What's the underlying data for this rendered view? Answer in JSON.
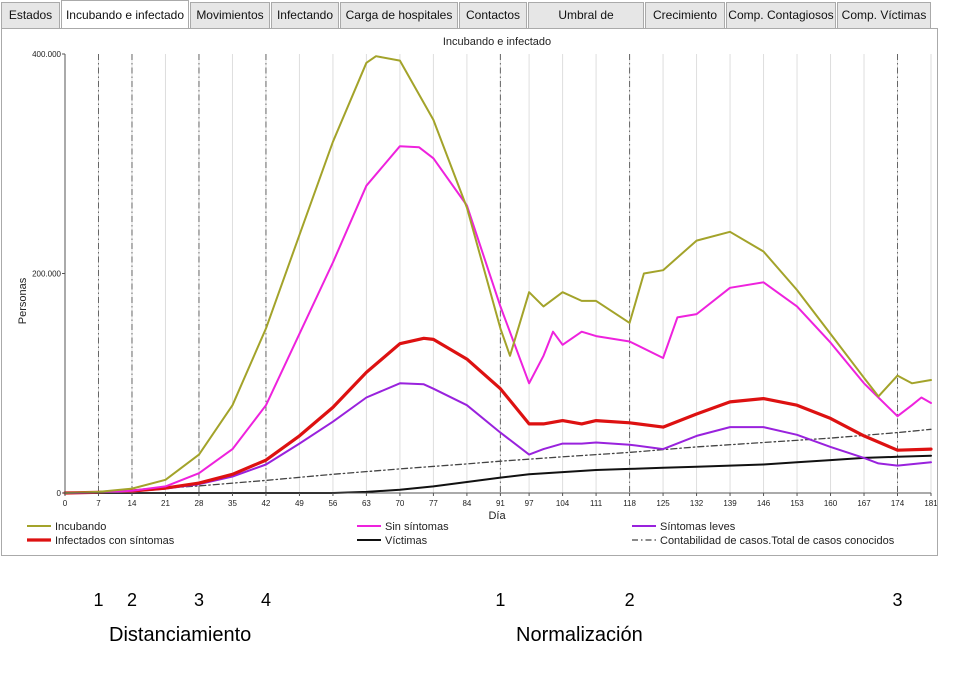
{
  "tabs": [
    {
      "label": "Estados"
    },
    {
      "label": "Incubando e infectado",
      "active": true
    },
    {
      "label": "Movimientos"
    },
    {
      "label": "Infectando"
    },
    {
      "label": "Carga de hospitales"
    },
    {
      "label": "Contactos"
    },
    {
      "label": "Umbral de Inmunidad"
    },
    {
      "label": "Crecimiento"
    },
    {
      "label": "Comp. Contagiosos"
    },
    {
      "label": "Comp. Víctimas"
    }
  ],
  "chart_data": {
    "type": "line",
    "title": "Incubando e infectado",
    "xlabel": "Día",
    "ylabel": "Personas",
    "xlim": [
      0,
      181
    ],
    "ylim": [
      0,
      400000
    ],
    "yticks": [
      {
        "value": 0,
        "label": "0"
      },
      {
        "value": 200000,
        "label": "200.000"
      },
      {
        "value": 400000,
        "label": "400.000"
      }
    ],
    "xticks": [
      0,
      7,
      14,
      21,
      28,
      35,
      42,
      49,
      56,
      63,
      70,
      77,
      84,
      91,
      97,
      104,
      111,
      118,
      125,
      132,
      139,
      146,
      153,
      160,
      167,
      174,
      181
    ],
    "vlines": [
      7,
      14,
      28,
      42,
      91,
      118,
      174
    ],
    "series": [
      {
        "name": "Incubando",
        "color": "#a3a32a",
        "width": 2,
        "dash": "",
        "points": [
          [
            0,
            0
          ],
          [
            7,
            1000
          ],
          [
            14,
            4000
          ],
          [
            21,
            12000
          ],
          [
            28,
            35000
          ],
          [
            35,
            80000
          ],
          [
            42,
            150000
          ],
          [
            49,
            235000
          ],
          [
            56,
            320000
          ],
          [
            63,
            392000
          ],
          [
            65,
            398000
          ],
          [
            70,
            394000
          ],
          [
            77,
            340000
          ],
          [
            84,
            260000
          ],
          [
            91,
            150000
          ],
          [
            93,
            125000
          ],
          [
            97,
            183000
          ],
          [
            100,
            170000
          ],
          [
            104,
            183000
          ],
          [
            108,
            175000
          ],
          [
            111,
            175000
          ],
          [
            118,
            155000
          ],
          [
            121,
            200000
          ],
          [
            125,
            203000
          ],
          [
            132,
            230000
          ],
          [
            139,
            238000
          ],
          [
            146,
            220000
          ],
          [
            153,
            185000
          ],
          [
            160,
            145000
          ],
          [
            167,
            105000
          ],
          [
            170,
            88000
          ],
          [
            174,
            107000
          ],
          [
            177,
            100000
          ],
          [
            181,
            103000
          ]
        ]
      },
      {
        "name": "Sin síntomas",
        "color": "#ee22dd",
        "width": 2,
        "dash": "",
        "points": [
          [
            0,
            0
          ],
          [
            7,
            500
          ],
          [
            14,
            2000
          ],
          [
            21,
            6000
          ],
          [
            28,
            18000
          ],
          [
            35,
            40000
          ],
          [
            42,
            80000
          ],
          [
            49,
            145000
          ],
          [
            56,
            210000
          ],
          [
            63,
            280000
          ],
          [
            70,
            316000
          ],
          [
            74,
            315000
          ],
          [
            77,
            305000
          ],
          [
            84,
            262000
          ],
          [
            91,
            170000
          ],
          [
            97,
            100000
          ],
          [
            100,
            125000
          ],
          [
            102,
            147000
          ],
          [
            104,
            135000
          ],
          [
            108,
            147000
          ],
          [
            111,
            143000
          ],
          [
            118,
            138000
          ],
          [
            125,
            123000
          ],
          [
            128,
            160000
          ],
          [
            132,
            163000
          ],
          [
            139,
            187000
          ],
          [
            146,
            192000
          ],
          [
            153,
            170000
          ],
          [
            160,
            137000
          ],
          [
            167,
            100000
          ],
          [
            170,
            87000
          ],
          [
            174,
            70000
          ],
          [
            177,
            80000
          ],
          [
            179,
            87000
          ],
          [
            181,
            82000
          ]
        ]
      },
      {
        "name": "Síntomas leves",
        "color": "#9922dd",
        "width": 2,
        "dash": "",
        "points": [
          [
            0,
            0
          ],
          [
            7,
            500
          ],
          [
            14,
            1500
          ],
          [
            21,
            4000
          ],
          [
            28,
            8000
          ],
          [
            35,
            15000
          ],
          [
            42,
            26000
          ],
          [
            49,
            45000
          ],
          [
            56,
            65000
          ],
          [
            63,
            87000
          ],
          [
            70,
            100000
          ],
          [
            75,
            99000
          ],
          [
            77,
            95000
          ],
          [
            84,
            80000
          ],
          [
            91,
            55000
          ],
          [
            97,
            35000
          ],
          [
            100,
            40000
          ],
          [
            104,
            45000
          ],
          [
            108,
            45000
          ],
          [
            111,
            46000
          ],
          [
            118,
            44000
          ],
          [
            125,
            40000
          ],
          [
            132,
            52000
          ],
          [
            139,
            60000
          ],
          [
            146,
            60000
          ],
          [
            153,
            53000
          ],
          [
            160,
            42000
          ],
          [
            167,
            32000
          ],
          [
            170,
            27000
          ],
          [
            174,
            25000
          ],
          [
            181,
            28000
          ]
        ]
      },
      {
        "name": "Infectados con síntomas",
        "color": "#dd1111",
        "width": 3.2,
        "dash": "",
        "points": [
          [
            0,
            0
          ],
          [
            7,
            600
          ],
          [
            14,
            1800
          ],
          [
            21,
            4500
          ],
          [
            28,
            9000
          ],
          [
            35,
            17000
          ],
          [
            42,
            30000
          ],
          [
            49,
            52000
          ],
          [
            56,
            78000
          ],
          [
            63,
            110000
          ],
          [
            70,
            136000
          ],
          [
            75,
            141000
          ],
          [
            77,
            140000
          ],
          [
            84,
            122000
          ],
          [
            91,
            95000
          ],
          [
            97,
            63000
          ],
          [
            100,
            63000
          ],
          [
            104,
            66000
          ],
          [
            108,
            63000
          ],
          [
            111,
            66000
          ],
          [
            118,
            64000
          ],
          [
            125,
            60000
          ],
          [
            132,
            72000
          ],
          [
            139,
            83000
          ],
          [
            146,
            86000
          ],
          [
            153,
            80000
          ],
          [
            160,
            68000
          ],
          [
            167,
            52000
          ],
          [
            174,
            39000
          ],
          [
            181,
            40000
          ]
        ]
      },
      {
        "name": "Víctimas",
        "color": "#111111",
        "width": 2,
        "dash": "",
        "points": [
          [
            0,
            0
          ],
          [
            42,
            0
          ],
          [
            56,
            0
          ],
          [
            63,
            1000
          ],
          [
            70,
            3000
          ],
          [
            77,
            6000
          ],
          [
            84,
            10000
          ],
          [
            91,
            14000
          ],
          [
            97,
            17000
          ],
          [
            104,
            19000
          ],
          [
            111,
            21000
          ],
          [
            118,
            22000
          ],
          [
            125,
            23000
          ],
          [
            132,
            24000
          ],
          [
            139,
            25000
          ],
          [
            146,
            26000
          ],
          [
            153,
            28000
          ],
          [
            160,
            30000
          ],
          [
            167,
            32000
          ],
          [
            174,
            33000
          ],
          [
            181,
            34000
          ]
        ]
      },
      {
        "name": "Contabilidad de casos.Total de casos conocidos",
        "color": "#444444",
        "width": 1.3,
        "dash": "6,3,1.5,3",
        "points": [
          [
            0,
            0
          ],
          [
            14,
            2500
          ],
          [
            28,
            6500
          ],
          [
            42,
            11500
          ],
          [
            56,
            17000
          ],
          [
            70,
            22000
          ],
          [
            84,
            26500
          ],
          [
            91,
            29000
          ],
          [
            104,
            33000
          ],
          [
            118,
            37000
          ],
          [
            132,
            42000
          ],
          [
            146,
            46000
          ],
          [
            160,
            50000
          ],
          [
            174,
            55000
          ],
          [
            181,
            58000
          ]
        ]
      }
    ]
  },
  "annotations": {
    "markers": [
      {
        "label": "1",
        "day": 7
      },
      {
        "label": "2",
        "day": 14
      },
      {
        "label": "3",
        "day": 28
      },
      {
        "label": "4",
        "day": 42
      },
      {
        "label": "1",
        "day": 91
      },
      {
        "label": "2",
        "day": 118
      },
      {
        "label": "3",
        "day": 174
      }
    ],
    "phases": [
      {
        "label": "Distanciamiento",
        "day": 21
      },
      {
        "label": "Normalización",
        "day": 110
      }
    ]
  }
}
